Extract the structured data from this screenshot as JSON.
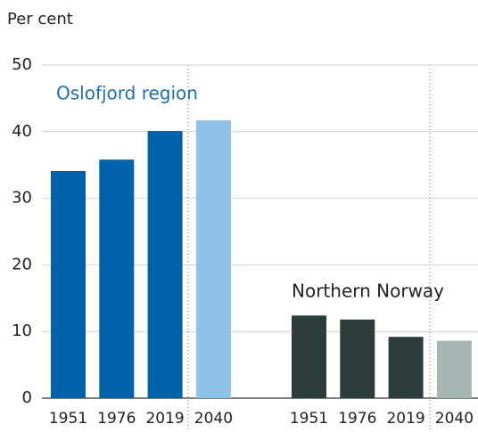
{
  "chart_data": {
    "type": "bar",
    "ylabel": "Per cent",
    "ylim": [
      0,
      50
    ],
    "yticks": [
      0,
      10,
      20,
      30,
      40,
      50
    ],
    "grid": true,
    "series": [
      {
        "name": "Oslofjord region",
        "color": "#1a6fb3",
        "colors": [
          "#0062ab",
          "#0062ab",
          "#0062ab",
          "#8fc2e8"
        ],
        "categories": [
          "1951",
          "1976",
          "2019",
          "2040"
        ],
        "values": [
          34.1,
          35.8,
          40.1,
          41.7
        ]
      },
      {
        "name": "Northern Norway",
        "color": "#222222",
        "colors": [
          "#2d3d3c",
          "#2d3d3c",
          "#2d3d3c",
          "#a6b6b3"
        ],
        "categories": [
          "1951",
          "1976",
          "2019",
          "2040"
        ],
        "values": [
          12.4,
          11.8,
          9.2,
          8.6
        ]
      }
    ]
  }
}
